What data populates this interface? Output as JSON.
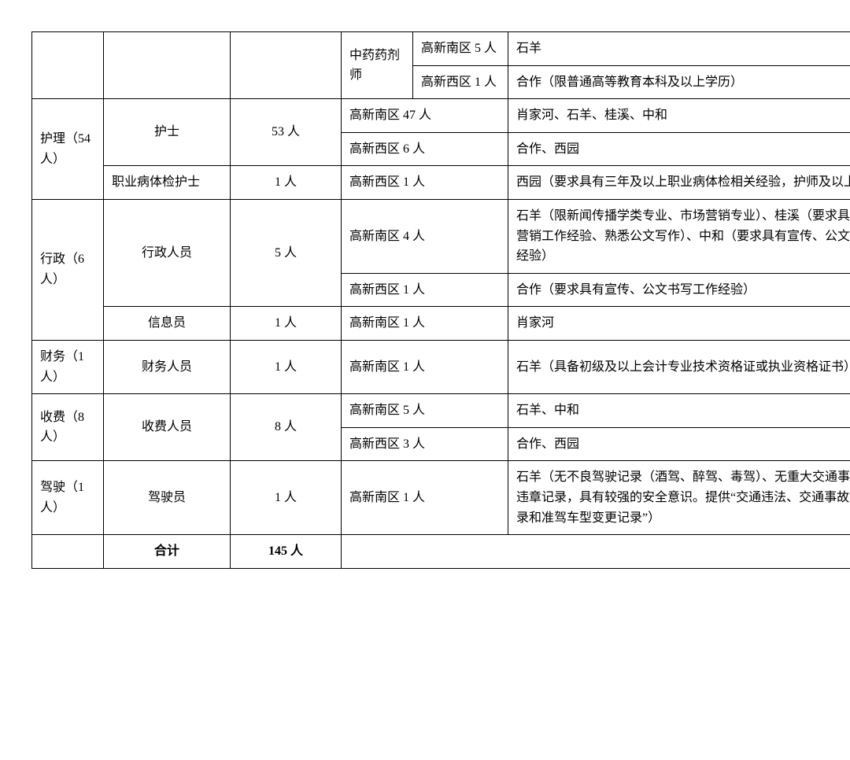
{
  "table": {
    "columns_widths": [
      70,
      140,
      120,
      70,
      100,
      500
    ],
    "border_color": "#000000",
    "font_family": "SimSun",
    "font_size_pt": 12,
    "background_color": "#ffffff",
    "rows": [
      {
        "cells": [
          {
            "text": "",
            "rowspan": 2,
            "colspan": 1,
            "class": "col0"
          },
          {
            "text": "",
            "rowspan": 2,
            "colspan": 1,
            "class": "col1"
          },
          {
            "text": "",
            "rowspan": 2,
            "colspan": 1,
            "class": "col2"
          },
          {
            "text": "中药药剂师",
            "rowspan": 2,
            "colspan": 1,
            "class": "col3"
          },
          {
            "text": "高新南区 5 人",
            "rowspan": 1,
            "colspan": 1,
            "class": "col4"
          },
          {
            "text": "石羊",
            "rowspan": 1,
            "colspan": 1,
            "class": "col5"
          }
        ]
      },
      {
        "cells": [
          {
            "text": "高新西区 1 人",
            "rowspan": 1,
            "colspan": 1,
            "class": "col4"
          },
          {
            "text": "合作（限普通高等教育本科及以上学历）",
            "rowspan": 1,
            "colspan": 1,
            "class": "col5"
          }
        ]
      },
      {
        "cells": [
          {
            "text": "护理（54人）",
            "rowspan": 3,
            "colspan": 1,
            "class": "col0"
          },
          {
            "text": "护士",
            "rowspan": 2,
            "colspan": 1,
            "class": "col1 center"
          },
          {
            "text": "53 人",
            "rowspan": 2,
            "colspan": 1,
            "class": "col2 center"
          },
          {
            "text": "高新南区 47 人",
            "rowspan": 1,
            "colspan": 2,
            "class": ""
          },
          {
            "text": "肖家河、石羊、桂溪、中和",
            "rowspan": 1,
            "colspan": 1,
            "class": "col5"
          }
        ]
      },
      {
        "cells": [
          {
            "text": "高新西区 6 人",
            "rowspan": 1,
            "colspan": 2,
            "class": ""
          },
          {
            "text": "合作、西园",
            "rowspan": 1,
            "colspan": 1,
            "class": "col5"
          }
        ]
      },
      {
        "cells": [
          {
            "text": "职业病体检护士",
            "rowspan": 1,
            "colspan": 1,
            "class": "col1"
          },
          {
            "text": "1 人",
            "rowspan": 1,
            "colspan": 1,
            "class": "col2 center"
          },
          {
            "text": "高新西区 1 人",
            "rowspan": 1,
            "colspan": 2,
            "class": ""
          },
          {
            "text": "西园（要求具有三年及以上职业病体检相关经验，护师及以上职称）",
            "rowspan": 1,
            "colspan": 1,
            "class": "col5"
          }
        ]
      },
      {
        "cells": [
          {
            "text": "行政（6人）",
            "rowspan": 3,
            "colspan": 1,
            "class": "col0"
          },
          {
            "text": "行政人员",
            "rowspan": 2,
            "colspan": 1,
            "class": "col1 center"
          },
          {
            "text": "5 人",
            "rowspan": 2,
            "colspan": 1,
            "class": "col2 center"
          },
          {
            "text": "高新南区 4 人",
            "rowspan": 1,
            "colspan": 2,
            "class": ""
          },
          {
            "text": "石羊（限新闻传播学类专业、市场营销专业）、桂溪（要求具有宣传、营销工作经验、熟悉公文写作）、中和（要求具有宣传、公文书写工作经验）",
            "rowspan": 1,
            "colspan": 1,
            "class": "col5"
          }
        ]
      },
      {
        "cells": [
          {
            "text": "高新西区 1 人",
            "rowspan": 1,
            "colspan": 2,
            "class": ""
          },
          {
            "text": "合作（要求具有宣传、公文书写工作经验）",
            "rowspan": 1,
            "colspan": 1,
            "class": "col5"
          }
        ]
      },
      {
        "cells": [
          {
            "text": "信息员",
            "rowspan": 1,
            "colspan": 1,
            "class": "col1 center"
          },
          {
            "text": "1 人",
            "rowspan": 1,
            "colspan": 1,
            "class": "col2 center"
          },
          {
            "text": "高新南区 1 人",
            "rowspan": 1,
            "colspan": 2,
            "class": ""
          },
          {
            "text": "肖家河",
            "rowspan": 1,
            "colspan": 1,
            "class": "col5"
          }
        ]
      },
      {
        "cells": [
          {
            "text": "财务（1人）",
            "rowspan": 1,
            "colspan": 1,
            "class": "col0"
          },
          {
            "text": "财务人员",
            "rowspan": 1,
            "colspan": 1,
            "class": "col1 center"
          },
          {
            "text": "1 人",
            "rowspan": 1,
            "colspan": 1,
            "class": "col2 center"
          },
          {
            "text": "高新南区 1 人",
            "rowspan": 1,
            "colspan": 2,
            "class": ""
          },
          {
            "text": "石羊（具备初级及以上会计专业技术资格证或执业资格证书）",
            "rowspan": 1,
            "colspan": 1,
            "class": "col5"
          }
        ]
      },
      {
        "cells": [
          {
            "text": "收费（8人）",
            "rowspan": 2,
            "colspan": 1,
            "class": "col0"
          },
          {
            "text": "收费人员",
            "rowspan": 2,
            "colspan": 1,
            "class": "col1 center"
          },
          {
            "text": "8 人",
            "rowspan": 2,
            "colspan": 1,
            "class": "col2 center"
          },
          {
            "text": "高新南区 5 人",
            "rowspan": 1,
            "colspan": 2,
            "class": ""
          },
          {
            "text": "石羊、中和",
            "rowspan": 1,
            "colspan": 1,
            "class": "col5"
          }
        ]
      },
      {
        "cells": [
          {
            "text": "高新西区 3 人",
            "rowspan": 1,
            "colspan": 2,
            "class": ""
          },
          {
            "text": "合作、西园",
            "rowspan": 1,
            "colspan": 1,
            "class": "col5"
          }
        ]
      },
      {
        "cells": [
          {
            "text": "驾驶（1人）",
            "rowspan": 1,
            "colspan": 1,
            "class": "col0"
          },
          {
            "text": "驾驶员",
            "rowspan": 1,
            "colspan": 1,
            "class": "col1 center"
          },
          {
            "text": "1 人",
            "rowspan": 1,
            "colspan": 1,
            "class": "col2 center"
          },
          {
            "text": "高新南区 1 人",
            "rowspan": 1,
            "colspan": 2,
            "class": ""
          },
          {
            "text": "石羊（无不良驾驶记录（酒驾、醉驾、毒驾）、无重大交通事故及交通违章记录，具有较强的安全意识。提供“交通违法、交通事故、满分记录和准驾车型变更记录”）",
            "rowspan": 1,
            "colspan": 1,
            "class": "col5"
          }
        ]
      },
      {
        "cells": [
          {
            "text": "",
            "rowspan": 1,
            "colspan": 1,
            "class": "col0"
          },
          {
            "text": "合计",
            "rowspan": 1,
            "colspan": 1,
            "class": "col1 center bold"
          },
          {
            "text": "145 人",
            "rowspan": 1,
            "colspan": 1,
            "class": "col2 center bold"
          },
          {
            "text": "",
            "rowspan": 1,
            "colspan": 3,
            "class": ""
          }
        ]
      }
    ]
  }
}
